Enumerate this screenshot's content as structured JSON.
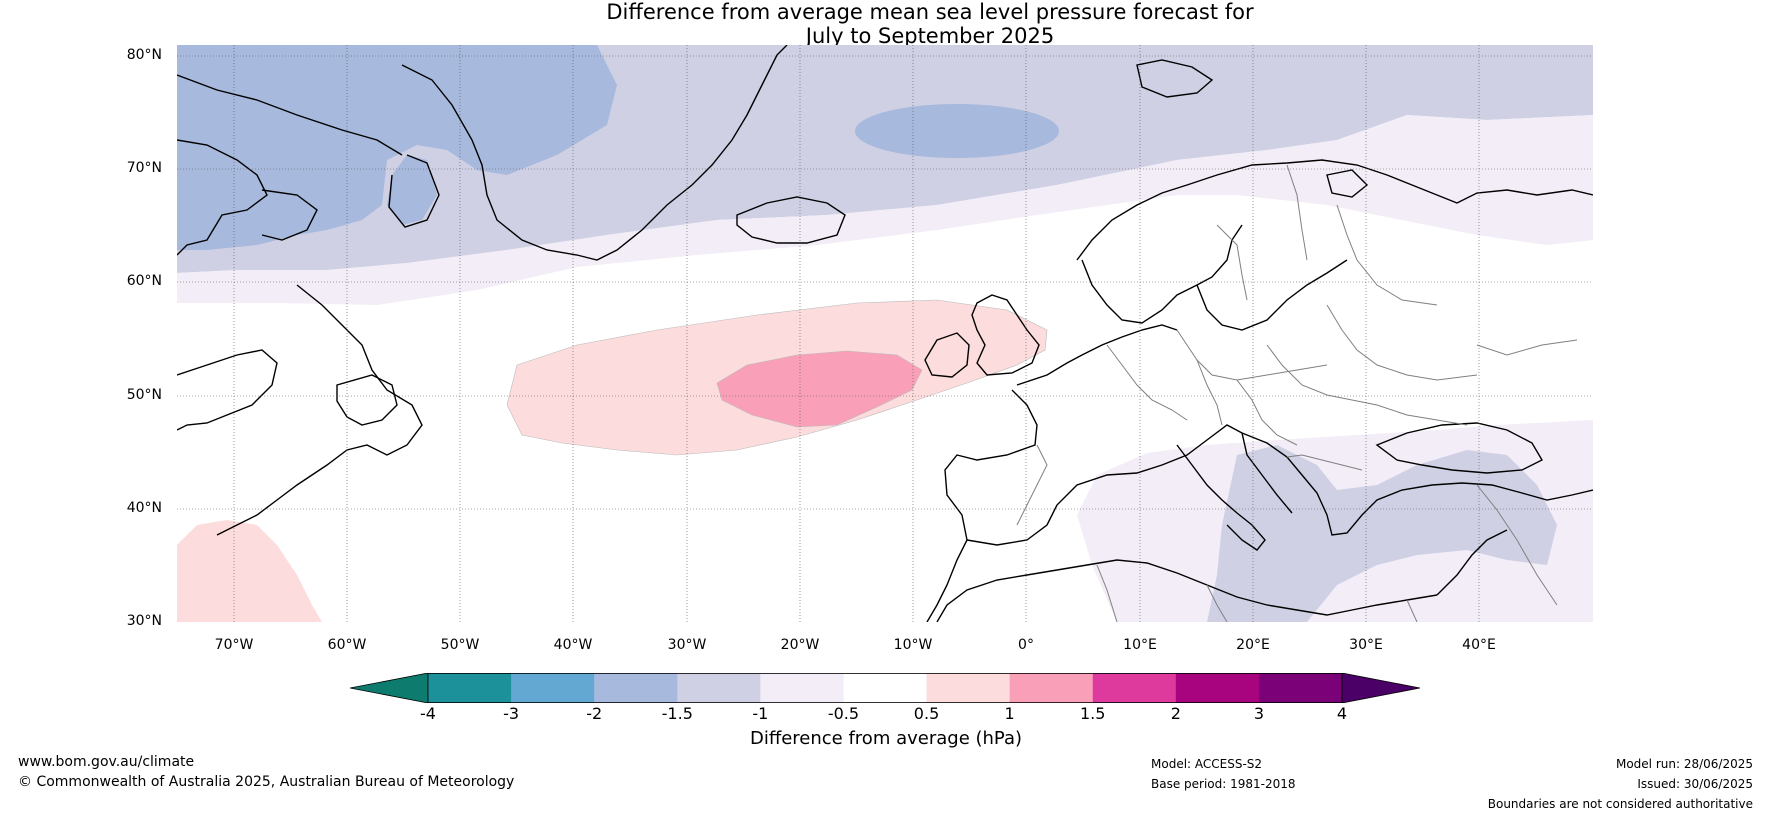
{
  "title": {
    "line1": "Difference from average mean sea level pressure forecast for",
    "line2": "July to September 2025"
  },
  "map": {
    "lat_labels": [
      "80°N",
      "70°N",
      "60°N",
      "50°N",
      "40°N",
      "30°N"
    ],
    "lon_labels": [
      "70°W",
      "60°W",
      "50°W",
      "40°W",
      "30°W",
      "20°W",
      "10°W",
      "0°",
      "10°E",
      "20°E",
      "30°E",
      "40°E"
    ],
    "extent": {
      "lon_min": -75,
      "lon_max": 50,
      "lat_min": 30,
      "lat_max": 81
    },
    "regions": [
      {
        "name": "negative-anomaly-north",
        "bin": "-1.5 to -1",
        "color": "#d0d0e5"
      },
      {
        "name": "negative-anomaly-greenland",
        "bin": "-2 to -1.5",
        "color": "#a7b9dc"
      },
      {
        "name": "negative-anomaly-norwegian-sea",
        "bin": "-2 to -1.5",
        "color": "#a7b9dc"
      },
      {
        "name": "positive-anomaly-atlantic",
        "bin": "0.5 to 1",
        "color": "#fcdcdc"
      },
      {
        "name": "positive-anomaly-atlantic-core",
        "bin": "1 to 1.5",
        "color": "#f9a0b8"
      },
      {
        "name": "negative-anomaly-mediterranean",
        "bin": "-1 to -0.5",
        "color": "#f2edf6"
      },
      {
        "name": "negative-anomaly-eastern-med",
        "bin": "-1.5 to -1",
        "color": "#d0d0e5"
      },
      {
        "name": "positive-anomaly-southwest",
        "bin": "0.5 to 1",
        "color": "#fcdcdc"
      }
    ]
  },
  "colorbar": {
    "colors": [
      "#0d7b6e",
      "#1d9199",
      "#62a8d2",
      "#a7b9dc",
      "#d0d0e5",
      "#f2edf6",
      "#ffffff",
      "#fcdcdc",
      "#f9a0b8",
      "#de3a9e",
      "#a90480",
      "#7a0178",
      "#4b0068"
    ],
    "ticks": [
      "-4",
      "-3",
      "-2",
      "-1.5",
      "-1",
      "-0.5",
      "0.5",
      "1",
      "1.5",
      "2",
      "3",
      "4"
    ],
    "label": "Difference from average (hPa)"
  },
  "footer": {
    "website": "www.bom.gov.au/climate",
    "copyright": "© Commonwealth of Australia 2025, Australian Bureau of Meteorology",
    "model": "Model: ACCESS-S2",
    "base_period": "Base period: 1981-2018",
    "model_run": "Model run: 28/06/2025",
    "issued": "Issued: 30/06/2025",
    "disclaimer": "Boundaries are not considered authoritative"
  }
}
